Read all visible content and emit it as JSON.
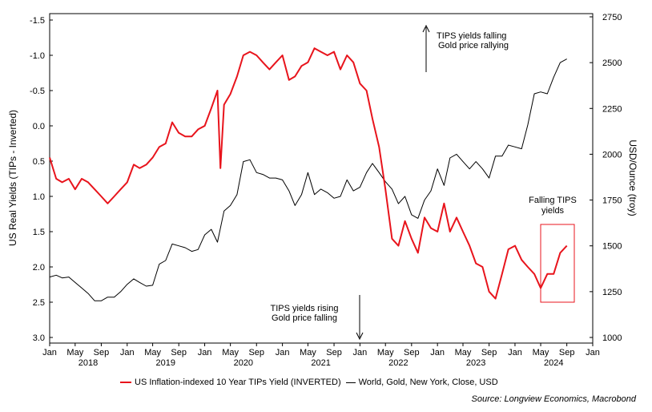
{
  "chart_data": {
    "type": "line",
    "left_axis": {
      "title": "US Real Yields (TIPs - Inverted)",
      "range": [
        -1.5,
        3.0
      ],
      "inverted": true,
      "tick_labels": [
        "-1.5",
        "-1.0",
        "-0.5",
        "0.0",
        "0.5",
        "1.0",
        "1.5",
        "2.0",
        "2.5",
        "3.0"
      ],
      "tick_values": [
        -1.5,
        -1.0,
        -0.5,
        0.0,
        0.5,
        1.0,
        1.5,
        2.0,
        2.5,
        3.0
      ]
    },
    "right_axis": {
      "title": "USD/Ounce (troy)",
      "range": [
        1000,
        2750
      ],
      "tick_labels": [
        "1000",
        "1250",
        "1500",
        "1750",
        "2000",
        "2250",
        "2500",
        "2750"
      ],
      "tick_values": [
        1000,
        1250,
        1500,
        1750,
        2000,
        2250,
        2500,
        2750
      ]
    },
    "x_axis": {
      "range": [
        "2018-01-01",
        "2025-01-01"
      ],
      "month_ticks": [
        "Jan",
        "May",
        "Sep",
        "Jan",
        "May",
        "Sep",
        "Jan",
        "May",
        "Sep",
        "Jan",
        "May",
        "Sep",
        "Jan",
        "May",
        "Sep",
        "Jan",
        "May",
        "Sep",
        "Jan",
        "May",
        "Sep",
        "Jan"
      ],
      "month_tick_dates": [
        "2018-01-01",
        "2018-05-01",
        "2018-09-01",
        "2019-01-01",
        "2019-05-01",
        "2019-09-01",
        "2020-01-01",
        "2020-05-01",
        "2020-09-01",
        "2021-01-01",
        "2021-05-01",
        "2021-09-01",
        "2022-01-01",
        "2022-05-01",
        "2022-09-01",
        "2023-01-01",
        "2023-05-01",
        "2023-09-01",
        "2024-01-01",
        "2024-05-01",
        "2024-09-01",
        "2025-01-01"
      ],
      "year_labels": [
        "2018",
        "2019",
        "2020",
        "2021",
        "2022",
        "2023",
        "2024"
      ],
      "year_label_dates": [
        "2018-07-01",
        "2019-07-01",
        "2020-07-01",
        "2021-07-01",
        "2022-07-01",
        "2023-07-01",
        "2024-07-01"
      ]
    },
    "series": [
      {
        "name": "US Inflation-indexed 10 Year TIPs Yield (INVERTED)",
        "axis": "left",
        "color": "#e8141c",
        "x": [
          "2018-01-01",
          "2018-02-01",
          "2018-03-01",
          "2018-04-01",
          "2018-05-01",
          "2018-06-01",
          "2018-07-01",
          "2018-08-01",
          "2018-09-01",
          "2018-10-01",
          "2018-11-01",
          "2018-12-01",
          "2019-01-01",
          "2019-02-01",
          "2019-03-01",
          "2019-04-01",
          "2019-05-01",
          "2019-06-01",
          "2019-07-01",
          "2019-08-01",
          "2019-09-01",
          "2019-10-01",
          "2019-11-01",
          "2019-12-01",
          "2020-01-01",
          "2020-02-01",
          "2020-03-01",
          "2020-03-15",
          "2020-04-01",
          "2020-05-01",
          "2020-06-01",
          "2020-07-01",
          "2020-08-01",
          "2020-09-01",
          "2020-10-01",
          "2020-11-01",
          "2020-12-01",
          "2021-01-01",
          "2021-02-01",
          "2021-03-01",
          "2021-04-01",
          "2021-05-01",
          "2021-06-01",
          "2021-07-01",
          "2021-08-01",
          "2021-09-01",
          "2021-10-01",
          "2021-11-01",
          "2021-12-01",
          "2022-01-01",
          "2022-02-01",
          "2022-03-01",
          "2022-04-01",
          "2022-05-01",
          "2022-06-01",
          "2022-07-01",
          "2022-08-01",
          "2022-09-01",
          "2022-10-01",
          "2022-11-01",
          "2022-12-01",
          "2023-01-01",
          "2023-02-01",
          "2023-03-01",
          "2023-04-01",
          "2023-05-01",
          "2023-06-01",
          "2023-07-01",
          "2023-08-01",
          "2023-09-01",
          "2023-10-01",
          "2023-11-01",
          "2023-12-01",
          "2024-01-01",
          "2024-02-01",
          "2024-03-01",
          "2024-04-01",
          "2024-05-01",
          "2024-06-01",
          "2024-07-01",
          "2024-08-01",
          "2024-09-01"
        ],
        "values": [
          0.45,
          0.75,
          0.8,
          0.75,
          0.9,
          0.75,
          0.8,
          0.9,
          1.0,
          1.1,
          1.0,
          0.9,
          0.8,
          0.55,
          0.6,
          0.55,
          0.45,
          0.3,
          0.25,
          -0.05,
          0.1,
          0.15,
          0.15,
          0.05,
          0.0,
          -0.25,
          -0.5,
          0.6,
          -0.3,
          -0.45,
          -0.7,
          -1.0,
          -1.05,
          -1.0,
          -0.9,
          -0.8,
          -0.9,
          -1.0,
          -0.65,
          -0.7,
          -0.85,
          -0.9,
          -1.1,
          -1.05,
          -1.0,
          -1.05,
          -0.8,
          -1.0,
          -0.9,
          -0.6,
          -0.5,
          -0.1,
          0.3,
          0.9,
          1.6,
          1.7,
          1.35,
          1.6,
          1.8,
          1.3,
          1.45,
          1.5,
          1.1,
          1.5,
          1.3,
          1.5,
          1.7,
          1.95,
          2.0,
          2.35,
          2.45,
          2.1,
          1.75,
          1.7,
          1.9,
          2.0,
          2.1,
          2.3,
          2.1,
          2.1,
          1.8,
          1.7
        ]
      },
      {
        "name": "World, Gold, New York, Close, USD",
        "axis": "right",
        "color": "#000000",
        "x": [
          "2018-01-01",
          "2018-02-01",
          "2018-03-01",
          "2018-04-01",
          "2018-05-01",
          "2018-06-01",
          "2018-07-01",
          "2018-08-01",
          "2018-09-01",
          "2018-10-01",
          "2018-11-01",
          "2018-12-01",
          "2019-01-01",
          "2019-02-01",
          "2019-03-01",
          "2019-04-01",
          "2019-05-01",
          "2019-06-01",
          "2019-07-01",
          "2019-08-01",
          "2019-09-01",
          "2019-10-01",
          "2019-11-01",
          "2019-12-01",
          "2020-01-01",
          "2020-02-01",
          "2020-03-01",
          "2020-04-01",
          "2020-05-01",
          "2020-06-01",
          "2020-07-01",
          "2020-08-01",
          "2020-09-01",
          "2020-10-01",
          "2020-11-01",
          "2020-12-01",
          "2021-01-01",
          "2021-02-01",
          "2021-03-01",
          "2021-04-01",
          "2021-05-01",
          "2021-06-01",
          "2021-07-01",
          "2021-08-01",
          "2021-09-01",
          "2021-10-01",
          "2021-11-01",
          "2021-12-01",
          "2022-01-01",
          "2022-02-01",
          "2022-03-01",
          "2022-04-01",
          "2022-05-01",
          "2022-06-01",
          "2022-07-01",
          "2022-08-01",
          "2022-09-01",
          "2022-10-01",
          "2022-11-01",
          "2022-12-01",
          "2023-01-01",
          "2023-02-01",
          "2023-03-01",
          "2023-04-01",
          "2023-05-01",
          "2023-06-01",
          "2023-07-01",
          "2023-08-01",
          "2023-09-01",
          "2023-10-01",
          "2023-11-01",
          "2023-12-01",
          "2024-01-01",
          "2024-02-01",
          "2024-03-01",
          "2024-04-01",
          "2024-05-01",
          "2024-06-01",
          "2024-07-01",
          "2024-08-01",
          "2024-09-01"
        ],
        "values": [
          1330,
          1340,
          1325,
          1330,
          1300,
          1270,
          1240,
          1200,
          1200,
          1220,
          1220,
          1250,
          1290,
          1320,
          1300,
          1280,
          1285,
          1400,
          1420,
          1510,
          1500,
          1490,
          1470,
          1480,
          1560,
          1590,
          1520,
          1690,
          1720,
          1780,
          1960,
          1970,
          1900,
          1890,
          1870,
          1870,
          1860,
          1800,
          1720,
          1780,
          1900,
          1780,
          1810,
          1790,
          1760,
          1770,
          1860,
          1800,
          1820,
          1900,
          1950,
          1900,
          1850,
          1810,
          1730,
          1770,
          1670,
          1650,
          1750,
          1800,
          1920,
          1830,
          1980,
          2000,
          1960,
          1920,
          1960,
          1920,
          1870,
          1990,
          1990,
          2050,
          2040,
          2030,
          2160,
          2330,
          2340,
          2330,
          2420,
          2500,
          2520
        ]
      }
    ],
    "annotations": {
      "top_lines": [
        "TIPS yields falling",
        "Gold price rallying"
      ],
      "bottom_lines": [
        "TIPS yields rising",
        "Gold price falling"
      ],
      "box_lines": [
        "Falling TIPS",
        "yields"
      ]
    },
    "legend_position": "bottom",
    "grid": false
  },
  "legend": {
    "red_label": "US Inflation-indexed 10 Year TIPs Yield (INVERTED)",
    "black_label": "World, Gold, New York, Close, USD"
  },
  "source": "Source: Longview Economics, Macrobond",
  "colors": {
    "tips": "#e8141c",
    "gold": "#000000",
    "highlight_box": "#e8141c"
  }
}
